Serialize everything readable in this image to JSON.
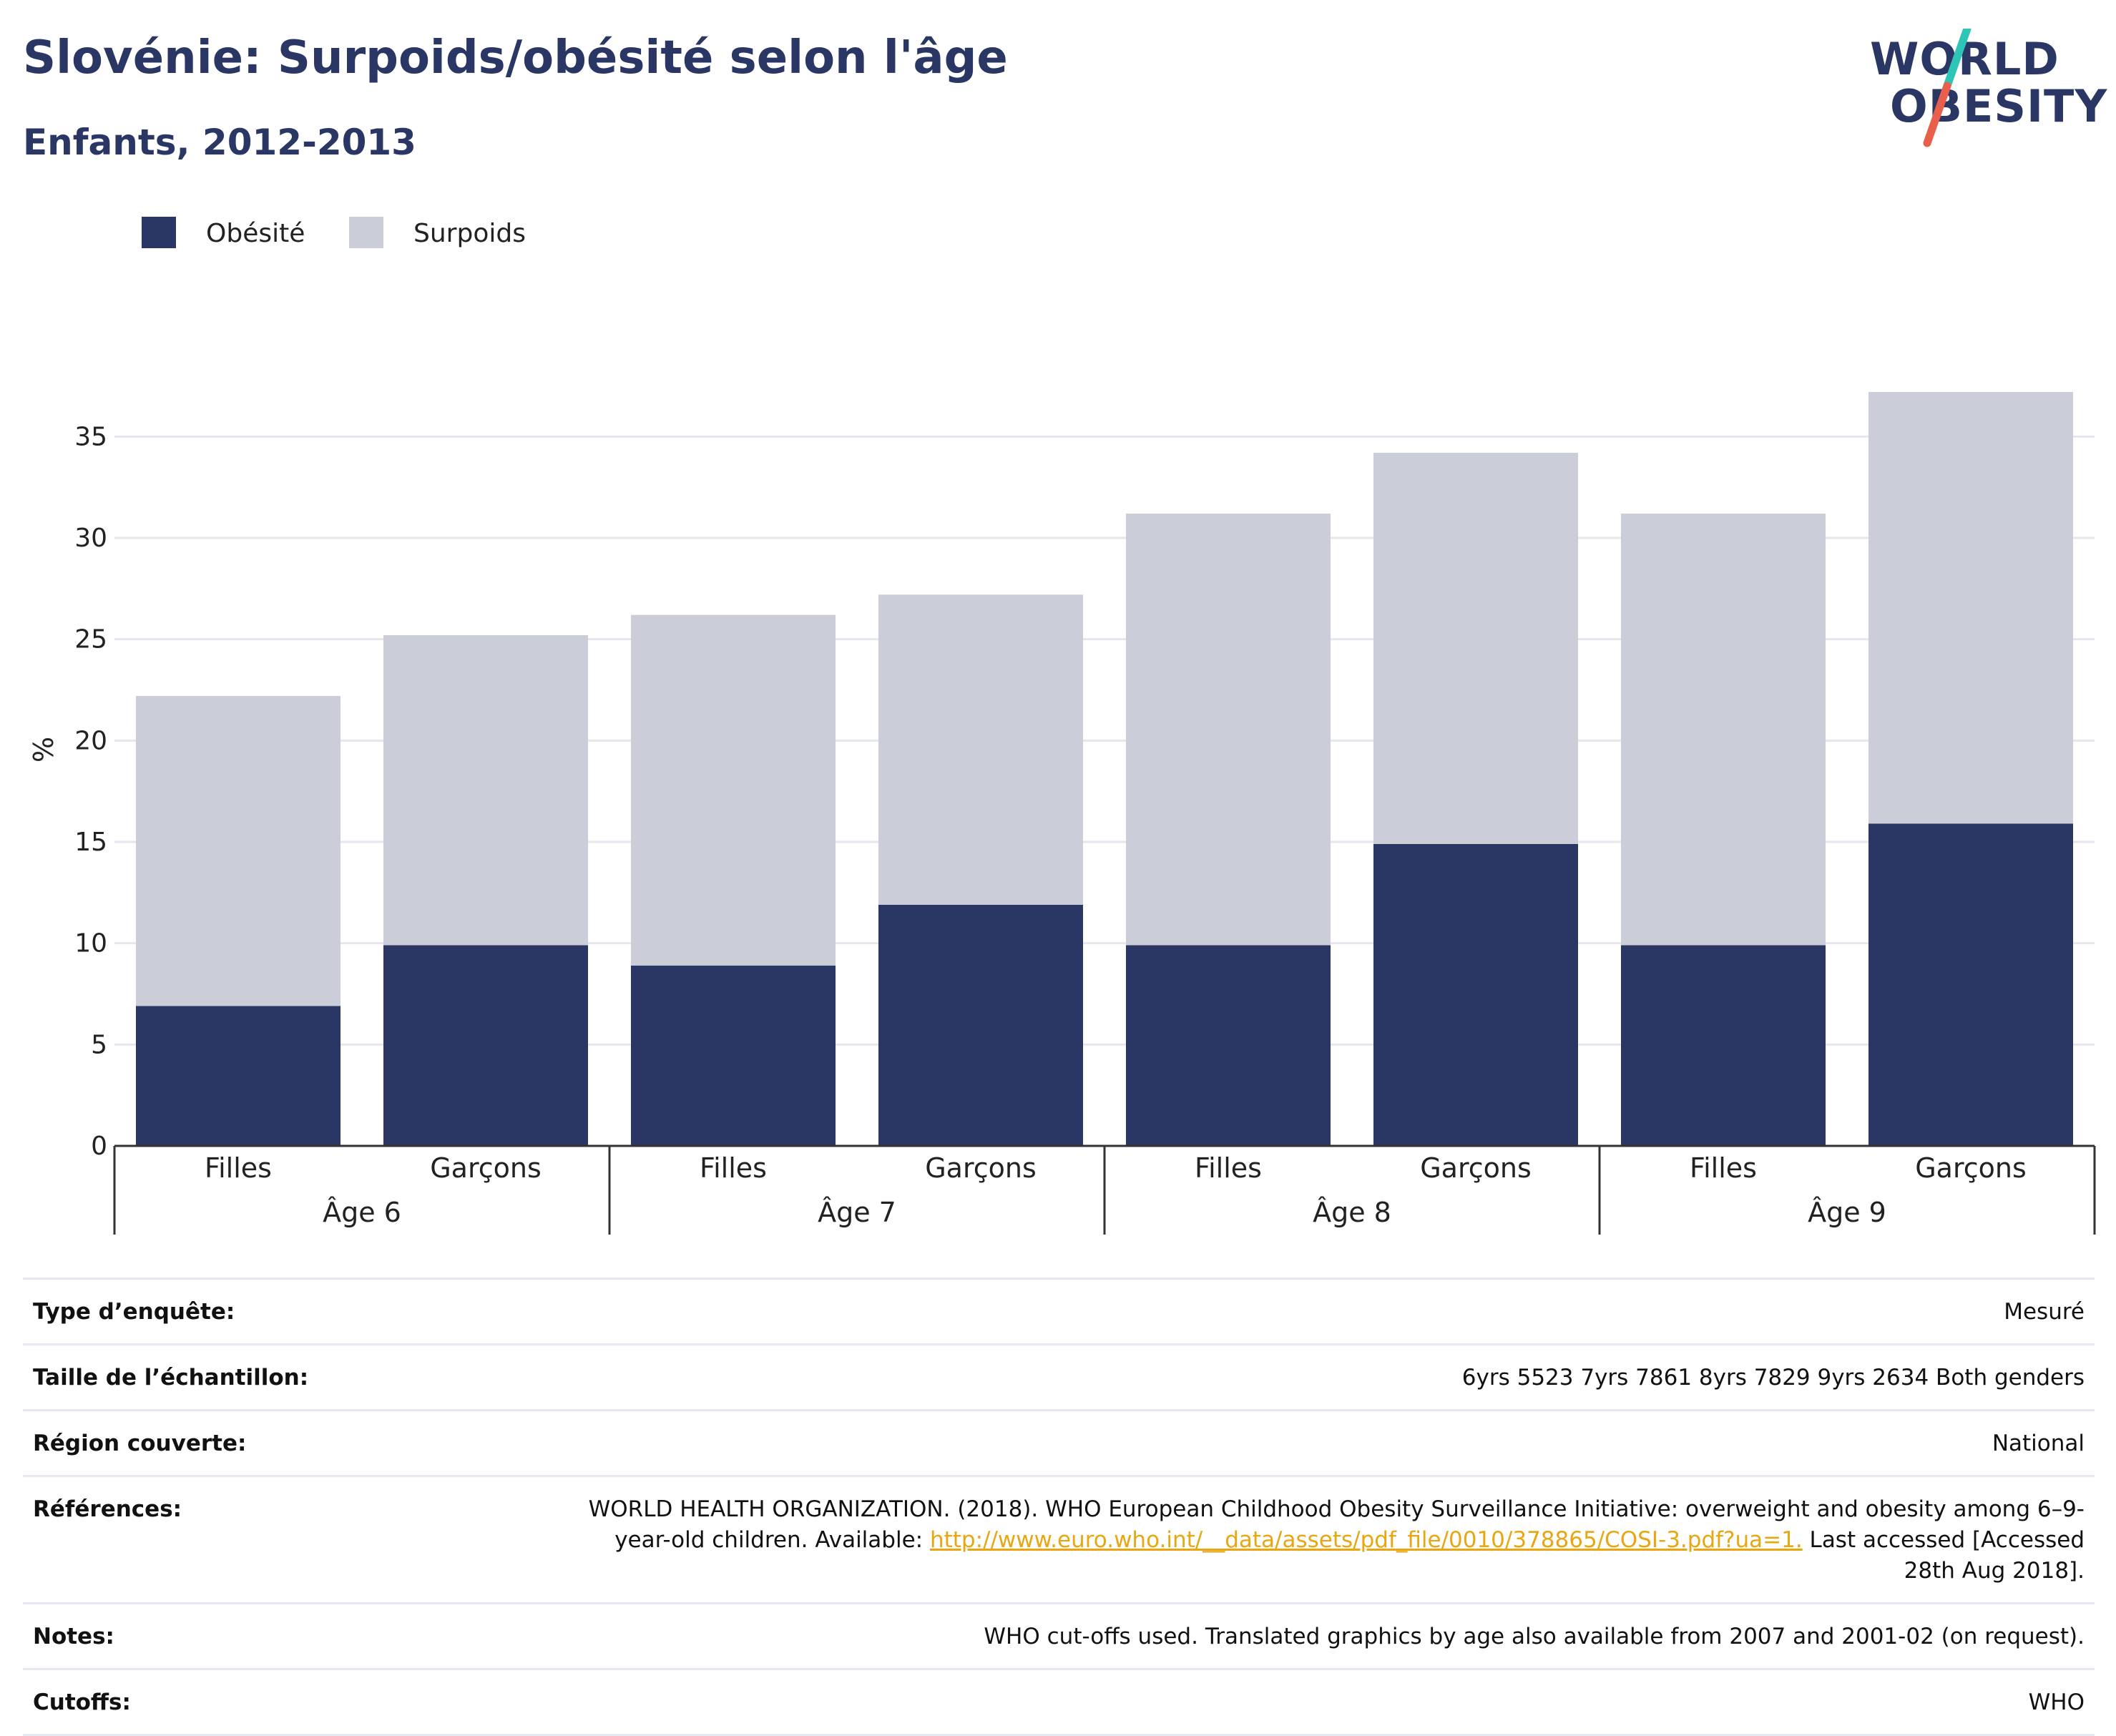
{
  "title": "Slovénie: Surpoids/obésité selon l'âge",
  "subtitle": "Enfants, 2012-2013",
  "logo": {
    "line1": "WORLD",
    "line2": "OBESITY",
    "slash_colors": [
      "#2ec4b6",
      "#e8604c"
    ]
  },
  "colors": {
    "obesity": "#2a3663",
    "overweight": "#cbcdd9",
    "grid": "#e6e6ee",
    "axis": "#333333",
    "text": "#2a3663",
    "link": "#e8a712"
  },
  "chart_data": {
    "type": "bar",
    "stacked": true,
    "categories": [
      "Filles",
      "Garçons",
      "Filles",
      "Garçons",
      "Filles",
      "Garçons",
      "Filles",
      "Garçons"
    ],
    "groups": [
      "Âge 6",
      "Âge 7",
      "Âge 8",
      "Âge 9"
    ],
    "series": [
      {
        "name": "Obésité",
        "values": [
          6.9,
          9.9,
          8.9,
          11.9,
          9.9,
          14.9,
          9.9,
          15.9
        ]
      },
      {
        "name": "Surpoids",
        "values": [
          15.3,
          15.3,
          17.3,
          15.3,
          21.3,
          19.3,
          21.3,
          21.3
        ]
      }
    ],
    "ylabel": "%",
    "ylim": [
      0,
      37.2
    ],
    "yticks": [
      0,
      5,
      10,
      15,
      20,
      25,
      30,
      35
    ],
    "grid": true,
    "legend": "top-left"
  },
  "info": {
    "rows": [
      {
        "label": "Type d’enquête:",
        "value": "Mesuré"
      },
      {
        "label": "Taille de l’échantillon:",
        "value": "6yrs 5523 7yrs 7861 8yrs 7829 9yrs 2634 Both genders"
      },
      {
        "label": "Région couverte:",
        "value": "National"
      },
      {
        "label": "Références:",
        "value_before": "WORLD HEALTH ORGANIZATION. (2018). WHO European Childhood Obesity Surveillance Initiative: overweight and obesity among 6–9-year-old children. Available: ",
        "link": "http://www.euro.who.int/__data/assets/pdf_file/0010/378865/COSI-3.pdf?ua=1.",
        "value_after": " Last accessed [Accessed 28th Aug 2018]."
      },
      {
        "label": "Notes:",
        "value": "WHO cut-offs used. Translated graphics by age also available from 2007 and 2001-02 (on request)."
      },
      {
        "label": "Cutoffs:",
        "value": "WHO"
      }
    ]
  }
}
